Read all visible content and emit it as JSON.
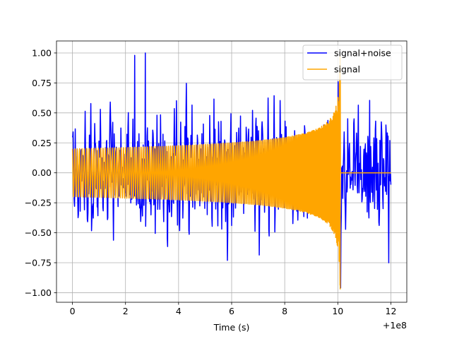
{
  "chart_data": {
    "type": "line",
    "title": "",
    "xlabel": "Time (s)",
    "ylabel": "",
    "x_offset_label": "+1e8",
    "xlim": [
      -0.6,
      12.6
    ],
    "ylim": [
      -1.08,
      1.1
    ],
    "grid": true,
    "legend_position": "top-right",
    "x_ticks": [
      0,
      2,
      4,
      6,
      8,
      10,
      12
    ],
    "x_tick_labels": [
      "0",
      "2",
      "4",
      "6",
      "8",
      "10",
      "12"
    ],
    "y_ticks": [
      -1.0,
      -0.75,
      -0.5,
      -0.25,
      0.0,
      0.25,
      0.5,
      0.75,
      1.0
    ],
    "y_tick_labels": [
      "−1.00",
      "−0.75",
      "−0.50",
      "−0.25",
      "0.00",
      "0.25",
      "0.50",
      "0.75",
      "1.00"
    ],
    "series": [
      {
        "name": "signal+noise",
        "color": "#0000ff",
        "description_points": {
          "x_range": [
            0,
            12
          ],
          "peak_max": 1.0,
          "peak_max_x": 2.75,
          "peak_min": -0.96,
          "peak_min_x": 10.1,
          "typical_envelope": 0.55
        }
      },
      {
        "name": "signal",
        "color": "#ffa500",
        "model": "chirp",
        "t_coalesce": 10.1,
        "amplitude_at_start": 0.2,
        "amplitude_at_merger": 0.97,
        "post_merger_value": 0.0
      }
    ]
  }
}
